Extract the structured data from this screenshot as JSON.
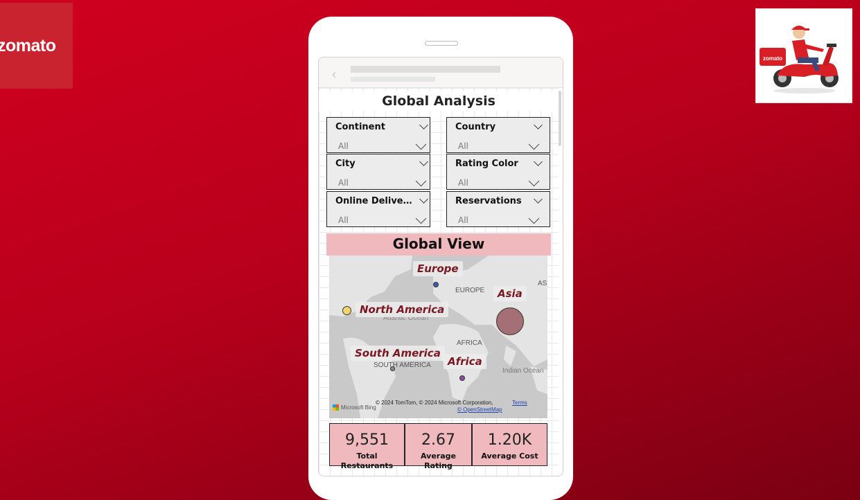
{
  "brand": {
    "logo_text": "zomato",
    "rider_badge_text": "zomato"
  },
  "dashboard": {
    "title": "Global Analysis",
    "filters": [
      {
        "label": "Continent",
        "value": "All"
      },
      {
        "label": "Country",
        "value": "All"
      },
      {
        "label": "City",
        "value": "All"
      },
      {
        "label": "Rating Color",
        "value": "All"
      },
      {
        "label": "Online Delive…",
        "value": "All"
      },
      {
        "label": "Reservations",
        "value": "All"
      }
    ],
    "map": {
      "title": "Global View",
      "regions": [
        "Europe",
        "North America",
        "Asia",
        "South America",
        "Africa"
      ],
      "basemap_labels": [
        "EUROPE",
        "AS",
        "Atlantic Ocean",
        "AFRICA",
        "SOUTH AMERICA",
        "Indian Ocean"
      ],
      "copyright": "© 2024 TomTom, © 2024 Microsoft Corporation,",
      "terms": "Terms",
      "osm": "© OpenStreetMap",
      "bing": "Microsoft Bing",
      "bubble_colors": {
        "North America": "#f2d46a",
        "Europe": "#3b5ea8",
        "Asia": "#8f4a50",
        "South America": "#8a8a8a",
        "Africa": "#8e4aa0"
      }
    },
    "kpis": [
      {
        "value": "9,551",
        "label": "Total Restaurants"
      },
      {
        "value": "2.67",
        "label": "Average Rating"
      },
      {
        "value": "1.20K",
        "label": "Average Cost"
      }
    ]
  }
}
